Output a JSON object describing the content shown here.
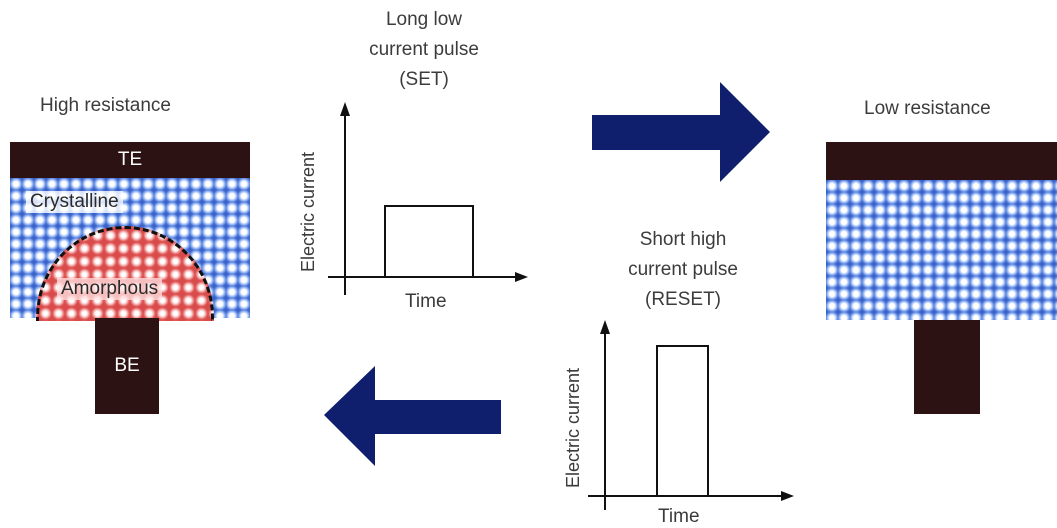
{
  "left_cell": {
    "title": "High resistance",
    "top_electrode": "TE",
    "crystalline_label": "Crystalline",
    "amorphous_label": "Amorphous",
    "bottom_electrode": "BE"
  },
  "right_cell": {
    "title": "Low resistance"
  },
  "set_pulse": {
    "caption_line1": "Long low",
    "caption_line2": "current pulse",
    "caption_line3": "(SET)",
    "ylabel": "Electric current",
    "xlabel": "Time"
  },
  "reset_pulse": {
    "caption_line1": "Short high",
    "caption_line2": "current pulse",
    "caption_line3": "(RESET)",
    "ylabel": "Electric current",
    "xlabel": "Time"
  },
  "colors": {
    "arrow": "#0f1f6e",
    "electrode": "#2c1212",
    "crystalline": "#3b63c9",
    "amorphous": "#e05555"
  },
  "icons": [
    "right-arrow-icon",
    "left-arrow-icon"
  ]
}
